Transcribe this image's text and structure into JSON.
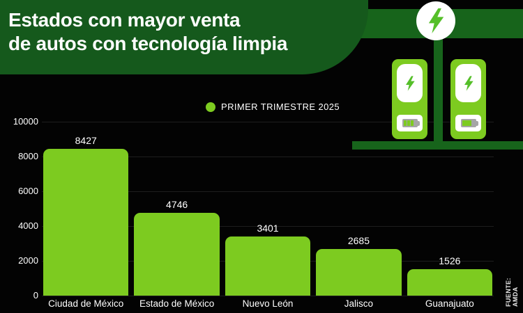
{
  "header": {
    "title_line1": "Estados con mayor venta",
    "title_line2": "de autos con tecnología limpia"
  },
  "legend": {
    "label": "PRIMER TRIMESTRE 2025"
  },
  "source": "FUENTE: AMDA",
  "colors": {
    "background": "#030303",
    "header_green": "#15591C",
    "scene_green": "#17641B",
    "bar_green": "#7DCB20",
    "bolt_green": "#55BF29",
    "grid": "#1E1E1E",
    "text": "#FFFFFF"
  },
  "icons": [
    "lightning-icon",
    "ev-charger-icon",
    "battery-icon"
  ],
  "chart_data": {
    "type": "bar",
    "title": "Estados con mayor venta de autos con tecnología limpia",
    "legend_entries": [
      "PRIMER TRIMESTRE 2025"
    ],
    "categories": [
      "Ciudad de México",
      "Estado de México",
      "Nuevo León",
      "Jalisco",
      "Guanajuato"
    ],
    "values": [
      8427,
      4746,
      3401,
      2685,
      1526
    ],
    "xlabel": "",
    "ylabel": "",
    "ylim": [
      0,
      10000
    ],
    "yticks": [
      0,
      2000,
      4000,
      6000,
      8000,
      10000
    ],
    "grid": true,
    "legend_position": "top-center",
    "bar_color": "#7DCB20",
    "source": "FUENTE: AMDA"
  }
}
